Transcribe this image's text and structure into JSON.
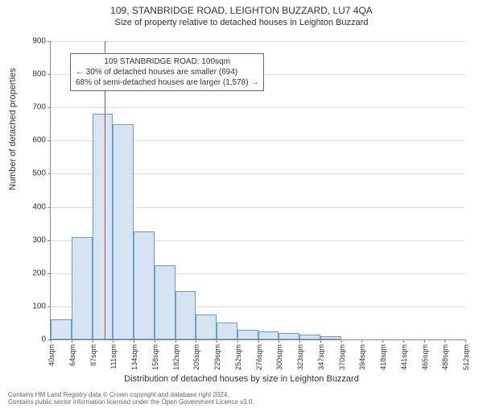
{
  "title": "109, STANBRIDGE ROAD, LEIGHTON BUZZARD, LU7 4QA",
  "subtitle": "Size of property relative to detached houses in Leighton Buzzard",
  "ylabel": "Number of detached properties",
  "xlabel": "Distribution of detached houses by size in Leighton Buzzard",
  "footer1": "Contains HM Land Registry data © Crown copyright and database right 2024.",
  "footer2": "Contains public sector information licensed under the Open Government Licence v3.0.",
  "chart": {
    "type": "histogram",
    "ylim": [
      0,
      900
    ],
    "ytick_step": 100,
    "yticks": [
      0,
      100,
      200,
      300,
      400,
      500,
      600,
      700,
      800,
      900
    ],
    "xticks": [
      "40sqm",
      "64sqm",
      "87sqm",
      "111sqm",
      "134sqm",
      "158sqm",
      "182sqm",
      "205sqm",
      "229sqm",
      "252sqm",
      "276sqm",
      "300sqm",
      "323sqm",
      "347sqm",
      "370sqm",
      "394sqm",
      "418sqm",
      "441sqm",
      "465sqm",
      "488sqm",
      "512sqm"
    ],
    "bar_color": "#d6e4f2",
    "bar_border_color": "#6a9bd1",
    "grid_color": "#dddddd",
    "axis_color": "#888888",
    "background_color": "#ffffff",
    "values": [
      60,
      310,
      680,
      650,
      325,
      225,
      145,
      75,
      50,
      30,
      25,
      20,
      15,
      10,
      0,
      0,
      0,
      0,
      0,
      0
    ],
    "reference_line": {
      "position_index": 2.6,
      "color": "#b84a4a"
    },
    "info_box": {
      "line1": "109 STANBRIDGE ROAD: 100sqm",
      "line2": "← 30% of detached houses are smaller (694)",
      "line3": "68% of semi-detached houses are larger (1,578) →",
      "border_color": "#666666",
      "font_size": 10
    }
  }
}
